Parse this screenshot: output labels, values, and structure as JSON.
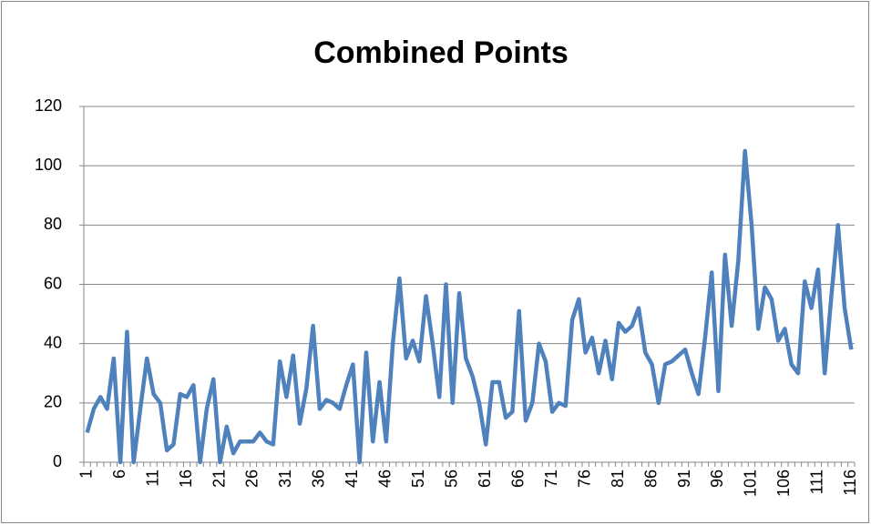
{
  "chart_data": {
    "type": "line",
    "title": "Combined Points",
    "categories": [
      "1",
      null,
      null,
      null,
      null,
      "6",
      null,
      null,
      null,
      null,
      "11",
      null,
      null,
      null,
      null,
      "16",
      null,
      null,
      null,
      null,
      "21",
      null,
      null,
      null,
      null,
      "26",
      null,
      null,
      null,
      null,
      "31",
      null,
      null,
      null,
      null,
      "36",
      null,
      null,
      null,
      null,
      "41",
      null,
      null,
      null,
      null,
      "46",
      null,
      null,
      null,
      null,
      "51",
      null,
      null,
      null,
      null,
      "56",
      null,
      null,
      null,
      null,
      "61",
      null,
      null,
      null,
      null,
      "66",
      null,
      null,
      null,
      null,
      "71",
      null,
      null,
      null,
      null,
      "76",
      null,
      null,
      null,
      null,
      "81",
      null,
      null,
      null,
      null,
      "86",
      null,
      null,
      null,
      null,
      "91",
      null,
      null,
      null,
      null,
      "96",
      null,
      null,
      null,
      null,
      "101",
      null,
      null,
      null,
      null,
      "106",
      null,
      null,
      null,
      null,
      "111",
      null,
      null,
      null,
      null,
      "116"
    ],
    "values": [
      10,
      18,
      22,
      18,
      35,
      0,
      44,
      0,
      18,
      35,
      23,
      20,
      4,
      6,
      23,
      22,
      26,
      0,
      18,
      28,
      0,
      12,
      3,
      7,
      7,
      7,
      10,
      7,
      6,
      34,
      22,
      36,
      13,
      25,
      46,
      18,
      21,
      20,
      18,
      26,
      33,
      0,
      37,
      7,
      27,
      7,
      40,
      62,
      35,
      41,
      34,
      56,
      40,
      22,
      60,
      20,
      57,
      35,
      29,
      20,
      6,
      27,
      27,
      15,
      17,
      51,
      14,
      20,
      40,
      34,
      17,
      20,
      19,
      48,
      55,
      37,
      42,
      30,
      41,
      28,
      47,
      44,
      46,
      52,
      37,
      33,
      20,
      33,
      34,
      36,
      38,
      30,
      23,
      42,
      64,
      24,
      70,
      46,
      68,
      105,
      80,
      45,
      59,
      55,
      41,
      45,
      33,
      30,
      61,
      52,
      65,
      30,
      56,
      80,
      52,
      38
    ],
    "color": "#4f81bd",
    "ylim": [
      0,
      120
    ],
    "yticks": [
      0,
      20,
      40,
      60,
      80,
      100,
      120
    ],
    "grid": true
  }
}
